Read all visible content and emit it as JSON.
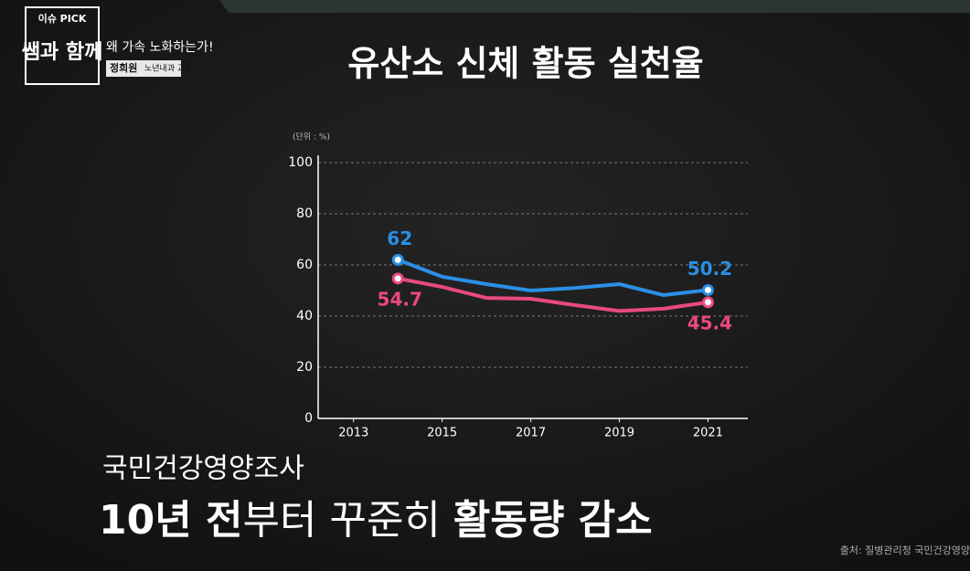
{
  "badge": {
    "tag": "이슈 PICK",
    "show": "쌤과 함께"
  },
  "episode": {
    "title": "왜 가속 노화하는가!",
    "speaker": "정희원",
    "role": "노년내과 교수"
  },
  "chart_data": {
    "type": "line",
    "title": "유산소 신체 활동 실천율",
    "unit_label": "(단위 : %)",
    "x": [
      2014,
      2015,
      2016,
      2017,
      2018,
      2019,
      2020,
      2021
    ],
    "series": [
      {
        "name": "blue",
        "color": "#2b8fe6",
        "values": [
          62,
          55.4,
          52.5,
          50,
          51,
          52.5,
          48.2,
          50.2
        ]
      },
      {
        "name": "pink",
        "color": "#ea4a7e",
        "values": [
          54.7,
          51.4,
          47.1,
          46.8,
          44.3,
          42,
          42.9,
          45.4
        ]
      }
    ],
    "xlim": [
      2012.2,
      2021.9
    ],
    "xticks": [
      2013,
      2015,
      2017,
      2019,
      2021
    ],
    "ylim": [
      0,
      100
    ],
    "yticks": [
      0,
      20,
      40,
      60,
      80,
      100
    ],
    "grid": true
  },
  "caption": {
    "source_title": "국민건강영양조사",
    "headline": [
      {
        "text": "10년 ",
        "bold": true
      },
      {
        "text": "전",
        "bold": true
      },
      {
        "text": "부터 꾸준히 ",
        "bold": false
      },
      {
        "text": "활동량 감소",
        "bold": true
      }
    ],
    "source": "출처: 질병관리청 국민건강영양"
  }
}
